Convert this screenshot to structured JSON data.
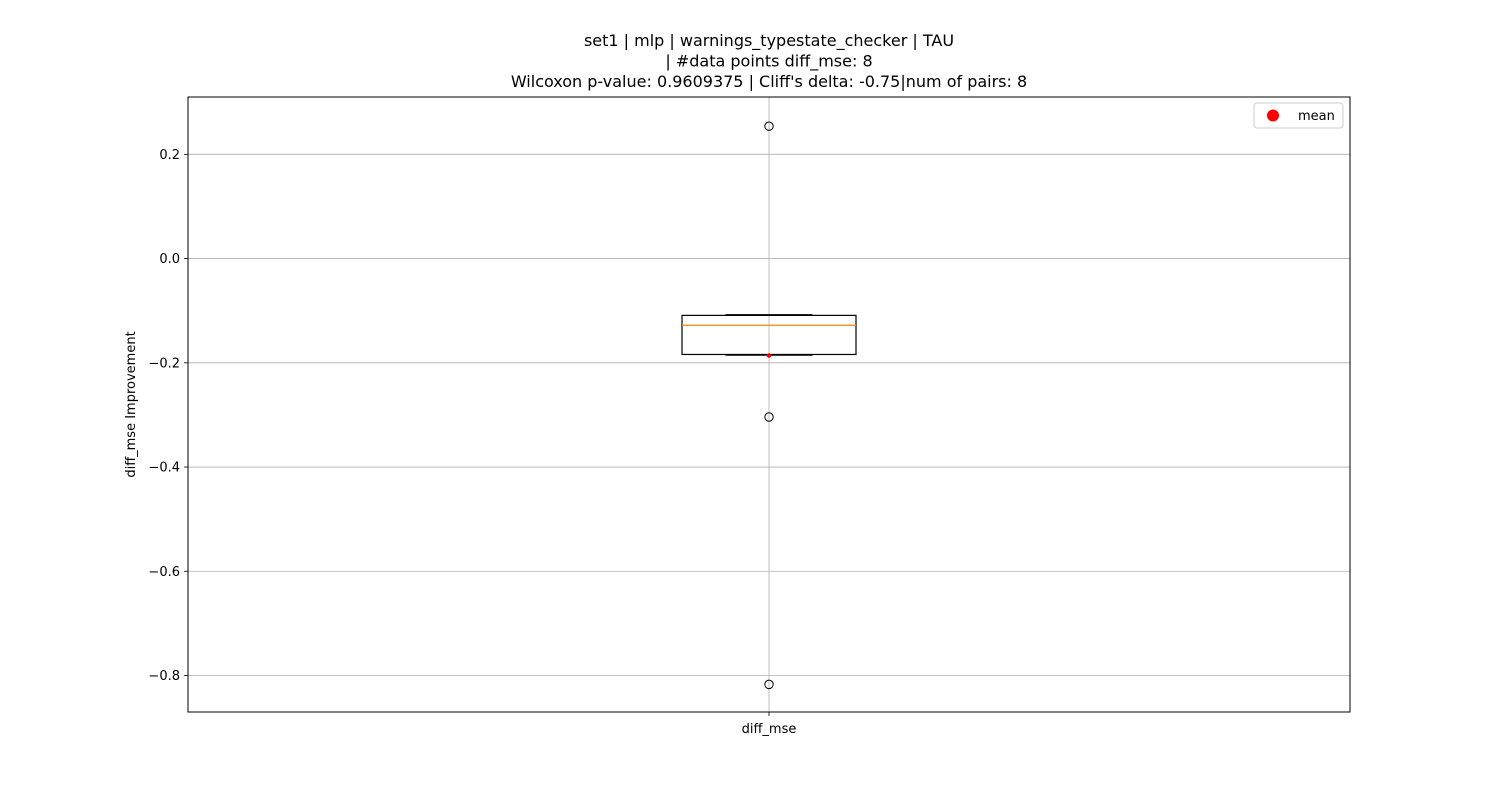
{
  "chart_data": {
    "type": "box",
    "title_lines": [
      "set1 | mlp | warnings_typestate_checker | TAU",
      "| #data points diff_mse: 8",
      "Wilcoxon p-value: 0.9609375 | Cliff's delta: -0.75|num of pairs: 8"
    ],
    "xlabel": "",
    "ylabel": "diff_mse Improvement",
    "categories": [
      "diff_mse"
    ],
    "ylim": [
      -0.87,
      0.31
    ],
    "yticks": [
      -0.8,
      -0.6,
      -0.4,
      -0.2,
      0.0,
      0.2
    ],
    "ytick_labels": [
      "−0.8",
      "−0.6",
      "−0.4",
      "−0.2",
      "0.0",
      "0.2"
    ],
    "grid": true,
    "legend": {
      "position": "top-right",
      "entries": [
        {
          "label": "mean",
          "color": "#ff0000",
          "marker": "circle"
        }
      ]
    },
    "boxes": [
      {
        "category": "diff_mse",
        "whisker_low": -0.185,
        "q1": -0.184,
        "median": -0.128,
        "q3": -0.109,
        "whisker_high": -0.108,
        "mean": -0.186,
        "outliers": [
          0.254,
          -0.304,
          -0.817
        ]
      }
    ],
    "colors": {
      "median": "#ff7f0e",
      "mean": "#ff0000",
      "box": "#000000",
      "grid": "#b0b0b0"
    }
  }
}
